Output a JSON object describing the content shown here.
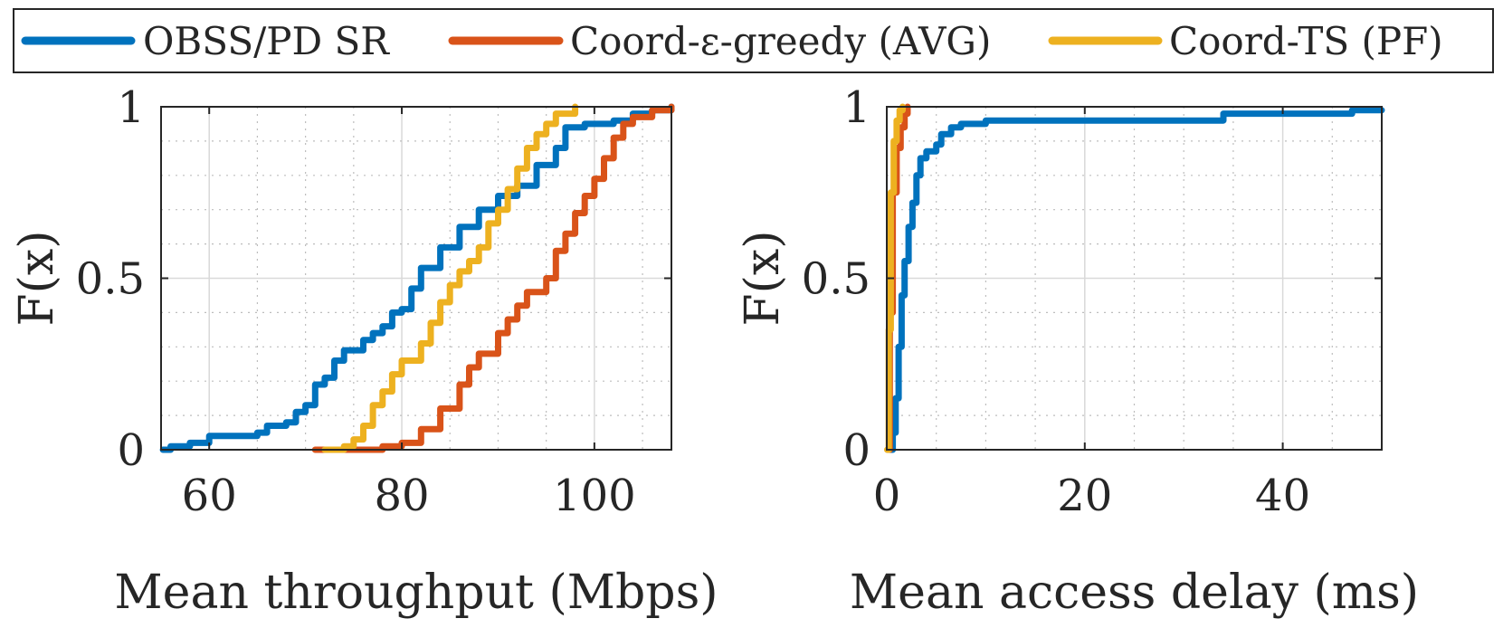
{
  "legend": {
    "entries": [
      {
        "label": "OBSS/PD SR",
        "color": "#0072BD"
      },
      {
        "label": "Coord-ε-greedy (AVG)",
        "color": "#D95319"
      },
      {
        "label": "Coord-TS (PF)",
        "color": "#EDB120"
      }
    ]
  },
  "chart_data": [
    {
      "type": "line",
      "id": "throughput",
      "xlabel": "Mean throughput (Mbps)",
      "ylabel": "F(x)",
      "xlim": [
        55,
        108
      ],
      "ylim": [
        0,
        1
      ],
      "xticks": [
        60,
        80,
        100
      ],
      "xtick_labels": [
        "60",
        "80",
        "100"
      ],
      "yticks": [
        0,
        0.5,
        1
      ],
      "ytick_labels": [
        "0",
        "0.5",
        "1"
      ],
      "grid": true,
      "series": [
        {
          "name": "OBSS/PD SR",
          "color": "#0072BD",
          "points": [
            [
              55.2,
              0
            ],
            [
              56,
              0.01
            ],
            [
              58,
              0.02
            ],
            [
              60,
              0.04
            ],
            [
              62,
              0.04
            ],
            [
              65,
              0.05
            ],
            [
              66,
              0.07
            ],
            [
              68,
              0.08
            ],
            [
              69,
              0.11
            ],
            [
              70,
              0.13
            ],
            [
              71,
              0.19
            ],
            [
              72,
              0.21
            ],
            [
              73,
              0.26
            ],
            [
              74,
              0.29
            ],
            [
              76,
              0.32
            ],
            [
              77,
              0.34
            ],
            [
              78,
              0.36
            ],
            [
              79,
              0.4
            ],
            [
              80,
              0.41
            ],
            [
              81,
              0.47
            ],
            [
              82,
              0.53
            ],
            [
              84,
              0.59
            ],
            [
              86,
              0.65
            ],
            [
              88,
              0.7
            ],
            [
              90,
              0.74
            ],
            [
              92,
              0.77
            ],
            [
              94,
              0.83
            ],
            [
              96,
              0.88
            ],
            [
              97,
              0.94
            ],
            [
              99,
              0.95
            ],
            [
              102,
              0.96
            ],
            [
              104,
              0.98
            ],
            [
              106,
              0.99
            ],
            [
              108,
              1
            ]
          ]
        },
        {
          "name": "Coord-ε-greedy (AVG)",
          "color": "#D95319",
          "points": [
            [
              71,
              0
            ],
            [
              75,
              0
            ],
            [
              78,
              0.01
            ],
            [
              80,
              0.02
            ],
            [
              82,
              0.06
            ],
            [
              84,
              0.12
            ],
            [
              86,
              0.19
            ],
            [
              87,
              0.24
            ],
            [
              88,
              0.28
            ],
            [
              90,
              0.34
            ],
            [
              91,
              0.38
            ],
            [
              92,
              0.42
            ],
            [
              93,
              0.46
            ],
            [
              95,
              0.5
            ],
            [
              96,
              0.58
            ],
            [
              97,
              0.63
            ],
            [
              98,
              0.69
            ],
            [
              99,
              0.74
            ],
            [
              100,
              0.79
            ],
            [
              101,
              0.85
            ],
            [
              102,
              0.91
            ],
            [
              103,
              0.95
            ],
            [
              104,
              0.97
            ],
            [
              106,
              0.99
            ],
            [
              108,
              1
            ]
          ]
        },
        {
          "name": "Coord-TS (PF)",
          "color": "#EDB120",
          "points": [
            [
              72,
              0
            ],
            [
              74,
              0.01
            ],
            [
              75,
              0.03
            ],
            [
              76,
              0.07
            ],
            [
              77,
              0.13
            ],
            [
              78,
              0.17
            ],
            [
              79,
              0.22
            ],
            [
              80,
              0.26
            ],
            [
              82,
              0.31
            ],
            [
              83,
              0.37
            ],
            [
              84,
              0.43
            ],
            [
              85,
              0.48
            ],
            [
              86,
              0.52
            ],
            [
              87,
              0.55
            ],
            [
              88,
              0.59
            ],
            [
              89,
              0.66
            ],
            [
              90,
              0.7
            ],
            [
              91,
              0.76
            ],
            [
              92,
              0.82
            ],
            [
              93,
              0.88
            ],
            [
              94,
              0.92
            ],
            [
              95,
              0.95
            ],
            [
              96,
              0.98
            ],
            [
              98,
              1
            ]
          ]
        }
      ]
    },
    {
      "type": "line",
      "id": "delay",
      "xlabel": "Mean access delay (ms)",
      "ylabel": "F(x)",
      "xlim": [
        0,
        50
      ],
      "ylim": [
        0,
        1
      ],
      "xticks": [
        0,
        20,
        40
      ],
      "xtick_labels": [
        "0",
        "20",
        "40"
      ],
      "yticks": [
        0,
        0.5,
        1
      ],
      "ytick_labels": [
        "0",
        "0.5",
        "1"
      ],
      "grid": true,
      "series": [
        {
          "name": "OBSS/PD SR",
          "color": "#0072BD",
          "points": [
            [
              0.4,
              0
            ],
            [
              0.6,
              0.05
            ],
            [
              0.9,
              0.15
            ],
            [
              1.2,
              0.3
            ],
            [
              1.5,
              0.45
            ],
            [
              1.8,
              0.55
            ],
            [
              2.2,
              0.65
            ],
            [
              2.6,
              0.72
            ],
            [
              3.0,
              0.8
            ],
            [
              3.4,
              0.85
            ],
            [
              4,
              0.87
            ],
            [
              5,
              0.89
            ],
            [
              5.5,
              0.92
            ],
            [
              6.5,
              0.94
            ],
            [
              7.5,
              0.95
            ],
            [
              10,
              0.96
            ],
            [
              32,
              0.96
            ],
            [
              34,
              0.98
            ],
            [
              45,
              0.98
            ],
            [
              47,
              0.99
            ],
            [
              50,
              0.99
            ]
          ]
        },
        {
          "name": "Coord-ε-greedy (AVG)",
          "color": "#D95319",
          "points": [
            [
              0.1,
              0
            ],
            [
              0.3,
              0.4
            ],
            [
              0.6,
              0.75
            ],
            [
              1.0,
              0.88
            ],
            [
              1.4,
              0.94
            ],
            [
              1.8,
              0.98
            ],
            [
              2.1,
              1
            ]
          ]
        },
        {
          "name": "Coord-TS (PF)",
          "color": "#EDB120",
          "points": [
            [
              0.05,
              0
            ],
            [
              0.2,
              0.35
            ],
            [
              0.4,
              0.75
            ],
            [
              0.7,
              0.9
            ],
            [
              1.0,
              0.96
            ],
            [
              1.3,
              0.99
            ],
            [
              1.6,
              1
            ]
          ]
        }
      ]
    }
  ]
}
